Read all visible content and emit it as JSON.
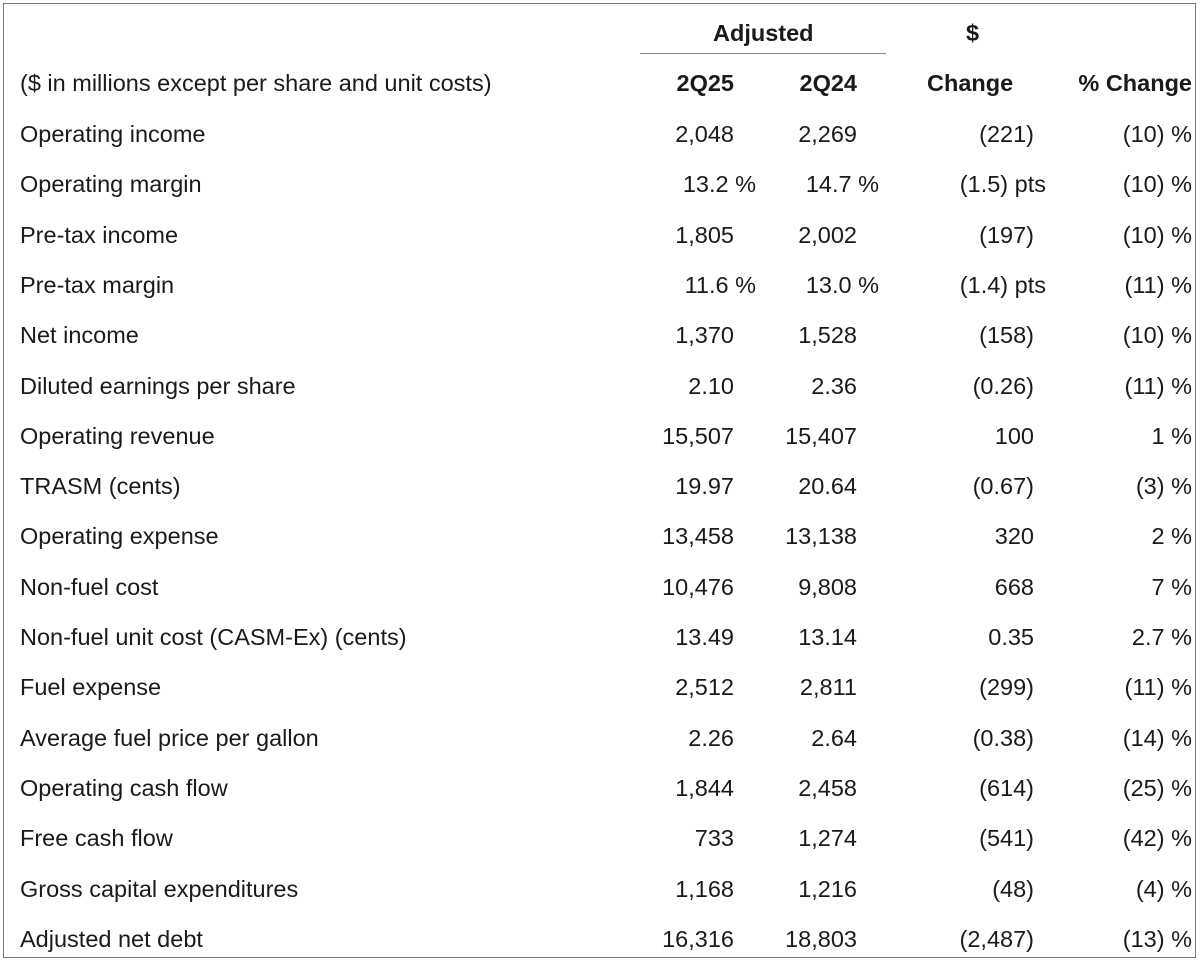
{
  "header": {
    "group_label": "Adjusted",
    "dollar_symbol": "$",
    "description": "($ in millions except per share and unit costs)",
    "col_current": "2Q25",
    "col_prior": "2Q24",
    "col_change": "Change",
    "col_pct_change": "% Change"
  },
  "rows": [
    {
      "label": "Operating income",
      "current": "2,048",
      "prior": "2,269",
      "change": "(221)",
      "pct": "(10) %"
    },
    {
      "label": "Operating margin",
      "current": "13.2 %",
      "prior": "14.7 %",
      "change": "(1.5) pts",
      "pct": "(10) %"
    },
    {
      "label": "Pre-tax income",
      "current": "1,805",
      "prior": "2,002",
      "change": "(197)",
      "pct": "(10) %"
    },
    {
      "label": "Pre-tax margin",
      "current": "11.6 %",
      "prior": "13.0 %",
      "change": "(1.4) pts",
      "pct": "(11) %"
    },
    {
      "label": "Net income",
      "current": "1,370",
      "prior": "1,528",
      "change": "(158)",
      "pct": "(10) %"
    },
    {
      "label": "Diluted earnings per share",
      "current": "2.10",
      "prior": "2.36",
      "change": "(0.26)",
      "pct": "(11) %"
    },
    {
      "label": "Operating revenue",
      "current": "15,507",
      "prior": "15,407",
      "change": "100",
      "pct": "1 %"
    },
    {
      "label": "TRASM (cents)",
      "current": "19.97",
      "prior": "20.64",
      "change": "(0.67)",
      "pct": "(3) %"
    },
    {
      "label": "Operating expense",
      "current": "13,458",
      "prior": "13,138",
      "change": "320",
      "pct": "2 %"
    },
    {
      "label": "Non-fuel cost",
      "current": "10,476",
      "prior": "9,808",
      "change": "668",
      "pct": "7 %"
    },
    {
      "label": "Non-fuel unit cost (CASM-Ex) (cents)",
      "current": "13.49",
      "prior": "13.14",
      "change": "0.35",
      "pct": "2.7 %"
    },
    {
      "label": "Fuel expense",
      "current": "2,512",
      "prior": "2,811",
      "change": "(299)",
      "pct": "(11) %"
    },
    {
      "label": "Average fuel price per gallon",
      "current": "2.26",
      "prior": "2.64",
      "change": "(0.38)",
      "pct": "(14) %"
    },
    {
      "label": "Operating cash flow",
      "current": "1,844",
      "prior": "2,458",
      "change": "(614)",
      "pct": "(25) %"
    },
    {
      "label": "Free cash flow",
      "current": "733",
      "prior": "1,274",
      "change": "(541)",
      "pct": "(42) %"
    },
    {
      "label": "Gross capital expenditures",
      "current": "1,168",
      "prior": "1,216",
      "change": "(48)",
      "pct": "(4) %"
    },
    {
      "label": "Adjusted net debt",
      "current": "16,316",
      "prior": "18,803",
      "change": "(2,487)",
      "pct": "(13) %"
    }
  ]
}
